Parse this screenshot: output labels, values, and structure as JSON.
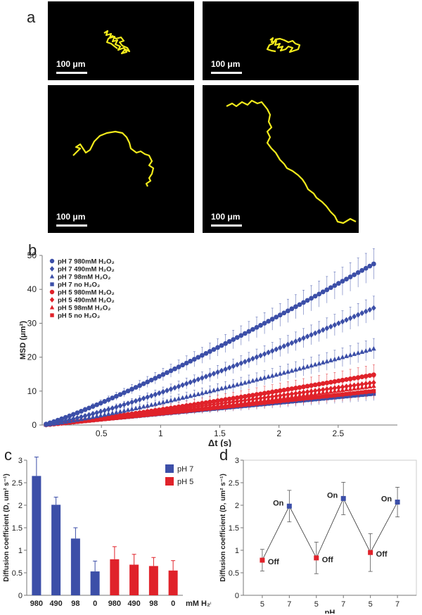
{
  "panels": {
    "a": {
      "letter": "a",
      "tiles": [
        {
          "scale_label": "100 μm"
        },
        {
          "scale_label": "100 μm"
        },
        {
          "scale_label": "100 μm"
        },
        {
          "scale_label": "100 μm"
        }
      ],
      "track_color": "#f2ea1c"
    },
    "b": {
      "letter": "b"
    },
    "c": {
      "letter": "c"
    },
    "d": {
      "letter": "d"
    }
  },
  "colors": {
    "blue": "#3c4fa8",
    "red": "#e0222a",
    "axis": "#777777",
    "text": "#222222"
  },
  "chart_data": [
    {
      "id": "b",
      "type": "scatter",
      "title": "",
      "xlabel": "Δt (s)",
      "ylabel": "MSD (μm²)",
      "xlim": [
        0,
        3
      ],
      "ylim": [
        0,
        50
      ],
      "x_ticks": [
        0.5,
        1,
        1.5,
        2,
        2.5
      ],
      "x_tick_labels": [
        "0.5",
        "1",
        "1.5",
        "2",
        "2.5"
      ],
      "y_ticks": [
        0,
        10,
        20,
        30,
        40,
        50
      ],
      "y_tick_labels": [
        "0",
        "10",
        "20",
        "30",
        "40",
        "50"
      ],
      "x_range": [
        0.033,
        2.8
      ],
      "n_points": 85,
      "legend_position": "top-left",
      "series": [
        {
          "name": "pH 7 980mM H₂O₂",
          "color": "#3c4fa8",
          "marker": "circle",
          "end_value": 47.5,
          "exponent": 1.15,
          "error_end": 4.5
        },
        {
          "name": "pH 7 490mM H₂O₂",
          "color": "#3c4fa8",
          "marker": "diamond",
          "end_value": 34.5,
          "exponent": 1.25,
          "error_end": 3.5
        },
        {
          "name": "pH 7 98mM H₂O₂",
          "color": "#3c4fa8",
          "marker": "triangle",
          "end_value": 22.5,
          "exponent": 1.2,
          "error_end": 3.0
        },
        {
          "name": "pH 7 no H₂O₂",
          "color": "#3c4fa8",
          "marker": "square",
          "end_value": 9.2,
          "exponent": 1.0,
          "error_end": 2.0
        },
        {
          "name": "pH 5 980mM H₂O₂",
          "color": "#e0222a",
          "marker": "circle",
          "end_value": 14.8,
          "exponent": 1.15,
          "error_end": 3.0
        },
        {
          "name": "pH 5 490mM H₂O₂",
          "color": "#e0222a",
          "marker": "diamond",
          "end_value": 12.5,
          "exponent": 1.1,
          "error_end": 2.8
        },
        {
          "name": "pH 5 98mM H₂O₂",
          "color": "#e0222a",
          "marker": "triangle",
          "end_value": 11.5,
          "exponent": 1.1,
          "error_end": 2.5
        },
        {
          "name": "pH 5 no H₂O₂",
          "color": "#e0222a",
          "marker": "square",
          "end_value": 10.0,
          "exponent": 1.05,
          "error_end": 2.2
        }
      ]
    },
    {
      "id": "c",
      "type": "bar",
      "title": "",
      "xlabel": "mM H₂O₂",
      "ylabel": "Diffusion coefficient (D, um² s⁻¹)",
      "ylim": [
        0,
        3
      ],
      "y_ticks": [
        0,
        0.5,
        1,
        1.5,
        2,
        2.5,
        3
      ],
      "y_tick_labels": [
        "0",
        "0.5",
        "1",
        "1.5",
        "2",
        "2.5",
        "3"
      ],
      "categories": [
        "980",
        "490",
        "98",
        "0",
        "980",
        "490",
        "98",
        "0"
      ],
      "values": [
        2.65,
        2.01,
        1.26,
        0.53,
        0.8,
        0.68,
        0.65,
        0.55
      ],
      "errors": [
        0.42,
        0.17,
        0.24,
        0.23,
        0.28,
        0.23,
        0.19,
        0.22
      ],
      "groups": [
        "pH 7",
        "pH 7",
        "pH 7",
        "pH 7",
        "pH 5",
        "pH 5",
        "pH 5",
        "pH 5"
      ],
      "legend": [
        {
          "name": "pH 7",
          "color": "#3c4fa8"
        },
        {
          "name": "pH 5",
          "color": "#e0222a"
        }
      ],
      "legend_position": "top-right"
    },
    {
      "id": "d",
      "type": "line",
      "title": "",
      "xlabel": "pH",
      "ylabel": "Diffusion coefficient (D, um² s⁻¹)",
      "ylim": [
        0,
        3
      ],
      "y_ticks": [
        0,
        0.5,
        1,
        1.5,
        2,
        2.5,
        3
      ],
      "y_tick_labels": [
        "0",
        "0.5",
        "1",
        "1.5",
        "2",
        "2.5",
        "3"
      ],
      "categories": [
        "5",
        "7",
        "5",
        "7",
        "5",
        "7"
      ],
      "values": [
        0.78,
        1.98,
        0.83,
        2.15,
        0.95,
        2.07
      ],
      "errors": [
        0.24,
        0.35,
        0.35,
        0.36,
        0.42,
        0.33
      ],
      "annotations": [
        "Off",
        "On",
        "Off",
        "On",
        "Off",
        "On"
      ],
      "point_colors": [
        "#e0222a",
        "#3c4fa8",
        "#e0222a",
        "#3c4fa8",
        "#e0222a",
        "#3c4fa8"
      ]
    }
  ]
}
